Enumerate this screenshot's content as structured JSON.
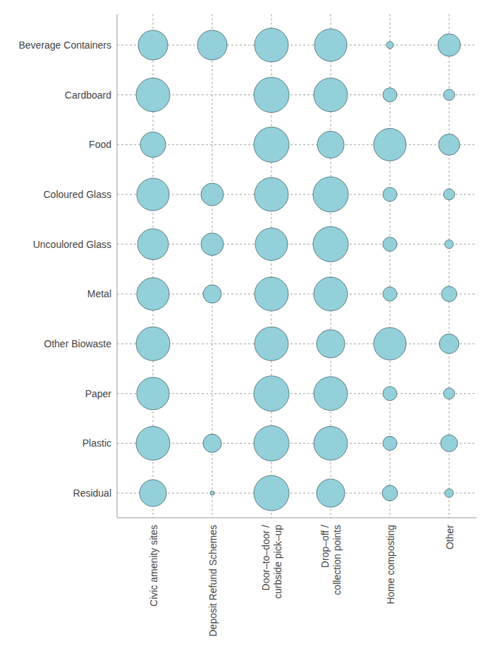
{
  "chart_data": {
    "type": "bubble",
    "x": [
      "Civic amenity sites",
      "Deposit Refund Schemes",
      "Door–to–door /\ncurbside pick–up",
      "Drop–off /\ncollection points",
      "Home composting",
      "Other"
    ],
    "y": [
      "Beverage Containers",
      "Cardboard",
      "Food",
      "Coloured Glass",
      "Uncoulored Glass",
      "Metal",
      "Other Biowaste",
      "Paper",
      "Plastic",
      "Residual"
    ],
    "size": [
      [
        71,
        71,
        92,
        85,
        4,
        41
      ],
      [
        92,
        null,
        100,
        92,
        16,
        10
      ],
      [
        52,
        null,
        100,
        58,
        85,
        36
      ],
      [
        85,
        41,
        92,
        100,
        16,
        10
      ],
      [
        77,
        41,
        85,
        100,
        16,
        6
      ],
      [
        85,
        27,
        92,
        92,
        16,
        19
      ],
      [
        92,
        null,
        92,
        64,
        85,
        31
      ],
      [
        85,
        null,
        100,
        92,
        16,
        10
      ],
      [
        92,
        27,
        100,
        92,
        16,
        23
      ],
      [
        58,
        1.4,
        100,
        64,
        19,
        6
      ]
    ],
    "color": "#93d0da",
    "grid": true
  }
}
